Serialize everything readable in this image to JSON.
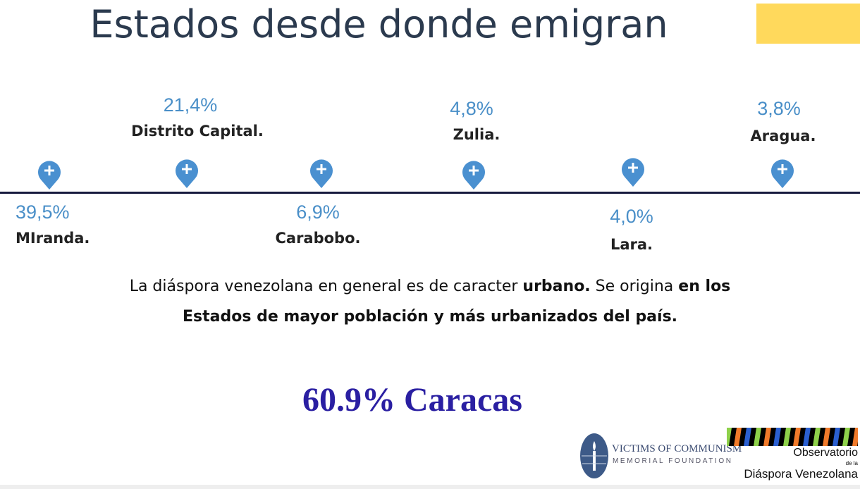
{
  "title": "Estados desde donde emigran",
  "colors": {
    "accent_yellow": "#ffd95c",
    "pin_blue": "#4a90d0",
    "percent_blue": "#4a8fc8",
    "highlight": "#2a1fa2"
  },
  "states": [
    {
      "name": "MIranda.",
      "percent": "39,5%",
      "position": "below"
    },
    {
      "name": "Distrito Capital.",
      "percent": "21,4%",
      "position": "above"
    },
    {
      "name": "Carabobo.",
      "percent": "6,9%",
      "position": "below"
    },
    {
      "name": "Zulia.",
      "percent": "4,8%",
      "position": "above"
    },
    {
      "name": "Lara.",
      "percent": "4,0%",
      "position": "below"
    },
    {
      "name": "Aragua.",
      "percent": "3,8%",
      "position": "above"
    }
  ],
  "pin_icon": "map-pin-plus-icon",
  "paragraph": {
    "p1": "La diáspora venezolana en general es de caracter ",
    "b1": "urbano.",
    "p2": " Se origina ",
    "b2": "en los Estados de mayor población y más urbanizados del país."
  },
  "highlight": "60.9% Caracas",
  "logos": {
    "voc_line1": "VICTIMS OF COMMUNISM",
    "voc_line2": "MEMORIAL FOUNDATION",
    "odv_line1": "Observatorio",
    "odv_line2": "de la",
    "odv_line3": "Diáspora Venezolana"
  }
}
